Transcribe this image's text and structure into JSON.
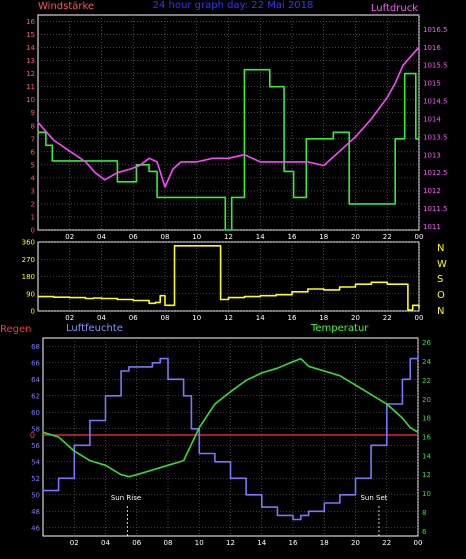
{
  "colors": {
    "background": "#000000",
    "frame": "#ffffff",
    "grid": "#707070",
    "wind_speed": "#33ee33",
    "pressure": "#ff44ff",
    "direction": "#ffff00",
    "humidity": "#7777ff",
    "temperature": "#33dd33",
    "rain": "#ff3333",
    "left_axis": "#ff5555",
    "right_axis_top": "#ff55ff",
    "nwso": "#ffff00",
    "title": "#3333ff",
    "humidity_label": "#7799ff",
    "temperature_label": "#33ff33"
  },
  "labels": {
    "windstaerke": "Windstärke",
    "title": "24 hour graph day: 22 Mai 2018",
    "luftdruck": "Luftdruck",
    "regen": "Regen",
    "luftfeuchte": "Luftfeuchte",
    "temperatur": "Temperatur",
    "sunrise": "Sun Rise",
    "sunset": "Sun Set",
    "direction_letters": [
      "N",
      "W",
      "S",
      "O",
      "N"
    ]
  },
  "chart_data": [
    {
      "type": "line",
      "x_ticks": [
        "02",
        "04",
        "06",
        "08",
        "10",
        "12",
        "14",
        "16",
        "18",
        "20",
        "22",
        "00"
      ],
      "x_range": [
        0,
        24
      ],
      "left_axis": {
        "ticks": [
          "0",
          "1",
          "2",
          "3",
          "4",
          "5",
          "6",
          "7",
          "8",
          "9",
          "10",
          "11",
          "12",
          "13",
          "14",
          "15",
          "16"
        ],
        "range": [
          0,
          16.5
        ]
      },
      "right_axis": {
        "ticks": [
          "1011",
          "1011.5",
          "1012",
          "1012.5",
          "1013",
          "1013.5",
          "1014",
          "1014.5",
          "1015",
          "1015.5",
          "1016",
          "1016.5"
        ],
        "range": [
          1010.9,
          1016.9
        ]
      },
      "grid": true,
      "series": [
        {
          "name": "Windstärke",
          "axis": "left",
          "step": true,
          "x": [
            0,
            0.5,
            0.9,
            5.0,
            5.4,
            6.2,
            6.6,
            6.7,
            7.0,
            7.3,
            7.5,
            8.6,
            11.8,
            12.2,
            13.0,
            14.6,
            15.5,
            16.1,
            16.9,
            17.5,
            18.3,
            18.6,
            19.6,
            20.2,
            20.6,
            21.5,
            22.5,
            23.1,
            23.8,
            24
          ],
          "y": [
            7.5,
            6.5,
            5.3,
            3.7,
            3.7,
            5.0,
            5.0,
            5.0,
            4.5,
            4.5,
            2.5,
            2.5,
            0,
            2.5,
            12.3,
            11.0,
            4.5,
            2.5,
            7.0,
            7.0,
            7.0,
            7.5,
            2.0,
            2.0,
            2.0,
            2.0,
            7.0,
            12.0,
            7.0,
            7.0
          ]
        },
        {
          "name": "Luftdruck",
          "axis": "right",
          "x": [
            0,
            1.0,
            2.0,
            3.0,
            3.6,
            4.2,
            5.0,
            5.8,
            6.4,
            7.0,
            7.5,
            8.0,
            8.5,
            9.0,
            10.0,
            11.0,
            12.0,
            13.0,
            14.0,
            15.0,
            16.0,
            17.0,
            18.0,
            19.0,
            20.0,
            21.0,
            22.0,
            22.5,
            23.0,
            24.0
          ],
          "y": [
            1013.9,
            1013.4,
            1013.1,
            1012.8,
            1012.5,
            1012.3,
            1012.5,
            1012.6,
            1012.7,
            1012.9,
            1012.8,
            1012.1,
            1012.6,
            1012.8,
            1012.8,
            1012.9,
            1012.9,
            1013.0,
            1012.8,
            1012.8,
            1012.8,
            1012.8,
            1012.7,
            1013.1,
            1013.5,
            1014.0,
            1014.6,
            1015.0,
            1015.5,
            1016.0
          ]
        }
      ]
    },
    {
      "type": "line",
      "x_ticks": [
        "02",
        "04",
        "06",
        "08",
        "10",
        "12",
        "14",
        "16",
        "18",
        "20",
        "22",
        "00"
      ],
      "x_range": [
        0,
        24
      ],
      "left_axis": {
        "ticks": [
          "0",
          "90",
          "180",
          "270",
          "360"
        ],
        "range": [
          0,
          360
        ]
      },
      "grid": true,
      "series": [
        {
          "name": "Windrichtung",
          "step": true,
          "x": [
            0,
            1.0,
            2.0,
            3.0,
            3.5,
            4.0,
            5.0,
            6.0,
            7.0,
            7.4,
            7.7,
            8.0,
            8.6,
            11.0,
            11.5,
            12.0,
            13.0,
            14.0,
            15.0,
            16.0,
            17.0,
            18.0,
            19.0,
            20.0,
            21.0,
            22.0,
            23.0,
            23.3,
            23.6,
            24
          ],
          "y": [
            75,
            72,
            70,
            65,
            68,
            65,
            60,
            55,
            40,
            45,
            80,
            30,
            340,
            340,
            60,
            70,
            75,
            80,
            85,
            100,
            115,
            110,
            125,
            140,
            150,
            140,
            140,
            5,
            30,
            15
          ]
        }
      ]
    },
    {
      "type": "line",
      "x_ticks": [
        "02",
        "04",
        "06",
        "08",
        "10",
        "12",
        "14",
        "16",
        "18",
        "20",
        "22",
        "00"
      ],
      "x_range": [
        0,
        24
      ],
      "left_axis": {
        "ticks": [
          "46",
          "48",
          "50",
          "52",
          "54",
          "56",
          "58",
          "60",
          "62",
          "64",
          "66",
          "68"
        ],
        "range": [
          45,
          69
        ]
      },
      "right_axis": {
        "ticks": [
          "6",
          "8",
          "10",
          "12",
          "14",
          "16",
          "18",
          "20",
          "22",
          "24",
          "26"
        ],
        "range": [
          5.5,
          26.5
        ]
      },
      "grid": true,
      "rain_line": {
        "value": "0"
      },
      "annotations": [
        {
          "text": "Sun Rise",
          "x": 5.4
        },
        {
          "text": "Sun Set",
          "x": 21.5
        }
      ],
      "series": [
        {
          "name": "Luftfeuchte",
          "axis": "left",
          "step": true,
          "x": [
            0,
            1.0,
            2.0,
            3.0,
            4.0,
            5.0,
            5.5,
            6.0,
            7.0,
            7.5,
            8.0,
            9.0,
            9.5,
            10.0,
            11.0,
            12.0,
            13.0,
            14.0,
            15.0,
            16.0,
            16.5,
            17.0,
            18.0,
            19.0,
            20.0,
            21.0,
            22.0,
            23.0,
            23.5,
            24.0
          ],
          "y": [
            50.5,
            52.0,
            56.0,
            59.0,
            62.0,
            65.0,
            65.5,
            65.5,
            66.0,
            66.5,
            64.0,
            62.0,
            58.0,
            55.0,
            54.0,
            52.0,
            50.0,
            48.5,
            47.5,
            47.0,
            47.5,
            48.0,
            49.0,
            50.0,
            52.0,
            56.0,
            61.0,
            64.0,
            66.5,
            67.0
          ]
        },
        {
          "name": "Temperatur",
          "axis": "right",
          "x": [
            0,
            1.0,
            2.0,
            3.0,
            4.0,
            5.0,
            5.5,
            6.0,
            7.0,
            8.0,
            9.0,
            10.0,
            11.0,
            12.0,
            13.0,
            14.0,
            15.0,
            16.0,
            16.5,
            17.0,
            18.0,
            19.0,
            20.0,
            21.0,
            22.0,
            23.0,
            23.5,
            24.0
          ],
          "y": [
            16.5,
            16.0,
            14.5,
            13.5,
            13.0,
            12.0,
            11.8,
            12.0,
            12.5,
            13.0,
            13.5,
            17.0,
            19.5,
            20.8,
            22.0,
            22.8,
            23.3,
            24.0,
            24.3,
            23.5,
            23.0,
            22.5,
            21.5,
            20.5,
            19.5,
            18.0,
            17.0,
            16.5
          ]
        }
      ]
    }
  ]
}
